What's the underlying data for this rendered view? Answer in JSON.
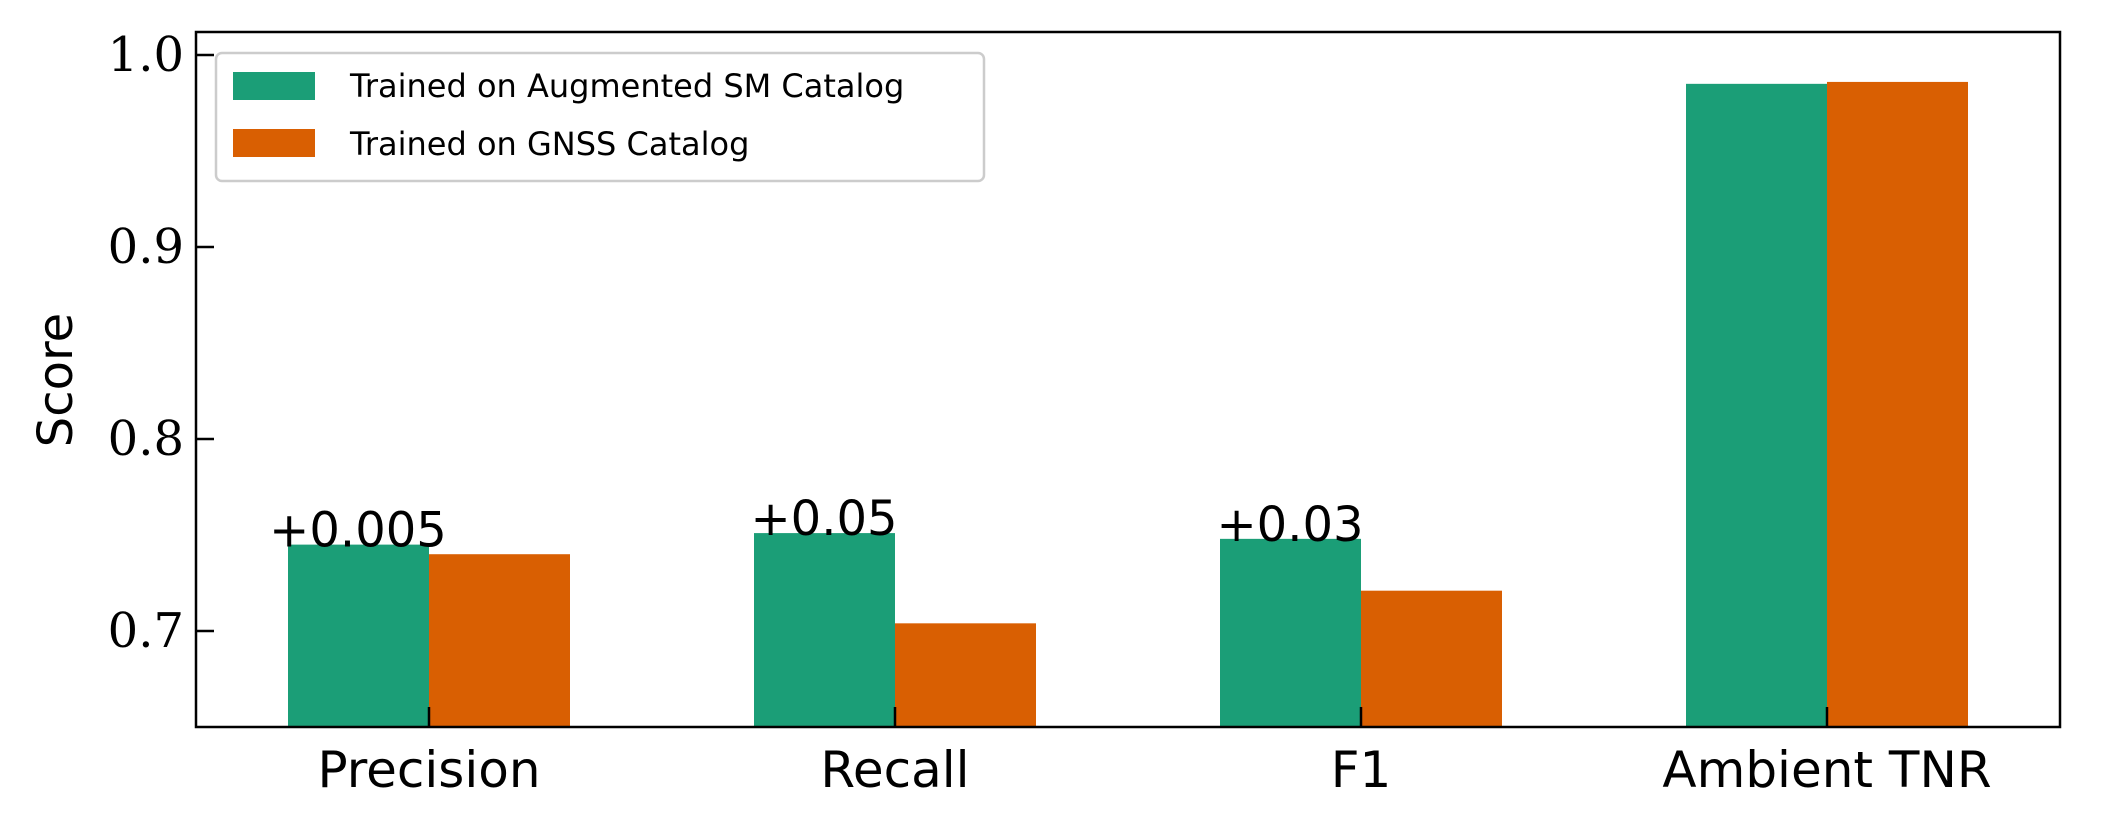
{
  "chart_data": {
    "type": "bar",
    "title": "",
    "xlabel": "",
    "ylabel": "Score",
    "categories": [
      "Precision",
      "Recall",
      "F1",
      "Ambient TNR"
    ],
    "series": [
      {
        "name": "Trained on Augmented SM Catalog",
        "color": "#1b9e77",
        "values": [
          0.745,
          0.751,
          0.748,
          0.985
        ]
      },
      {
        "name": "Trained on GNSS Catalog",
        "color": "#d95f02",
        "values": [
          0.74,
          0.704,
          0.721,
          0.986
        ]
      }
    ],
    "annotations": [
      {
        "category": "Precision",
        "text": "+0.005"
      },
      {
        "category": "Recall",
        "text": "+0.05"
      },
      {
        "category": "F1",
        "text": "+0.03"
      }
    ],
    "ylim": [
      0.65,
      1.012
    ],
    "yticks": [
      0.7,
      0.8,
      0.9,
      1.0
    ],
    "ytick_labels": [
      "0.7",
      "0.8",
      "0.9",
      "1.0"
    ],
    "legend_position": "top-left",
    "grid": false
  }
}
